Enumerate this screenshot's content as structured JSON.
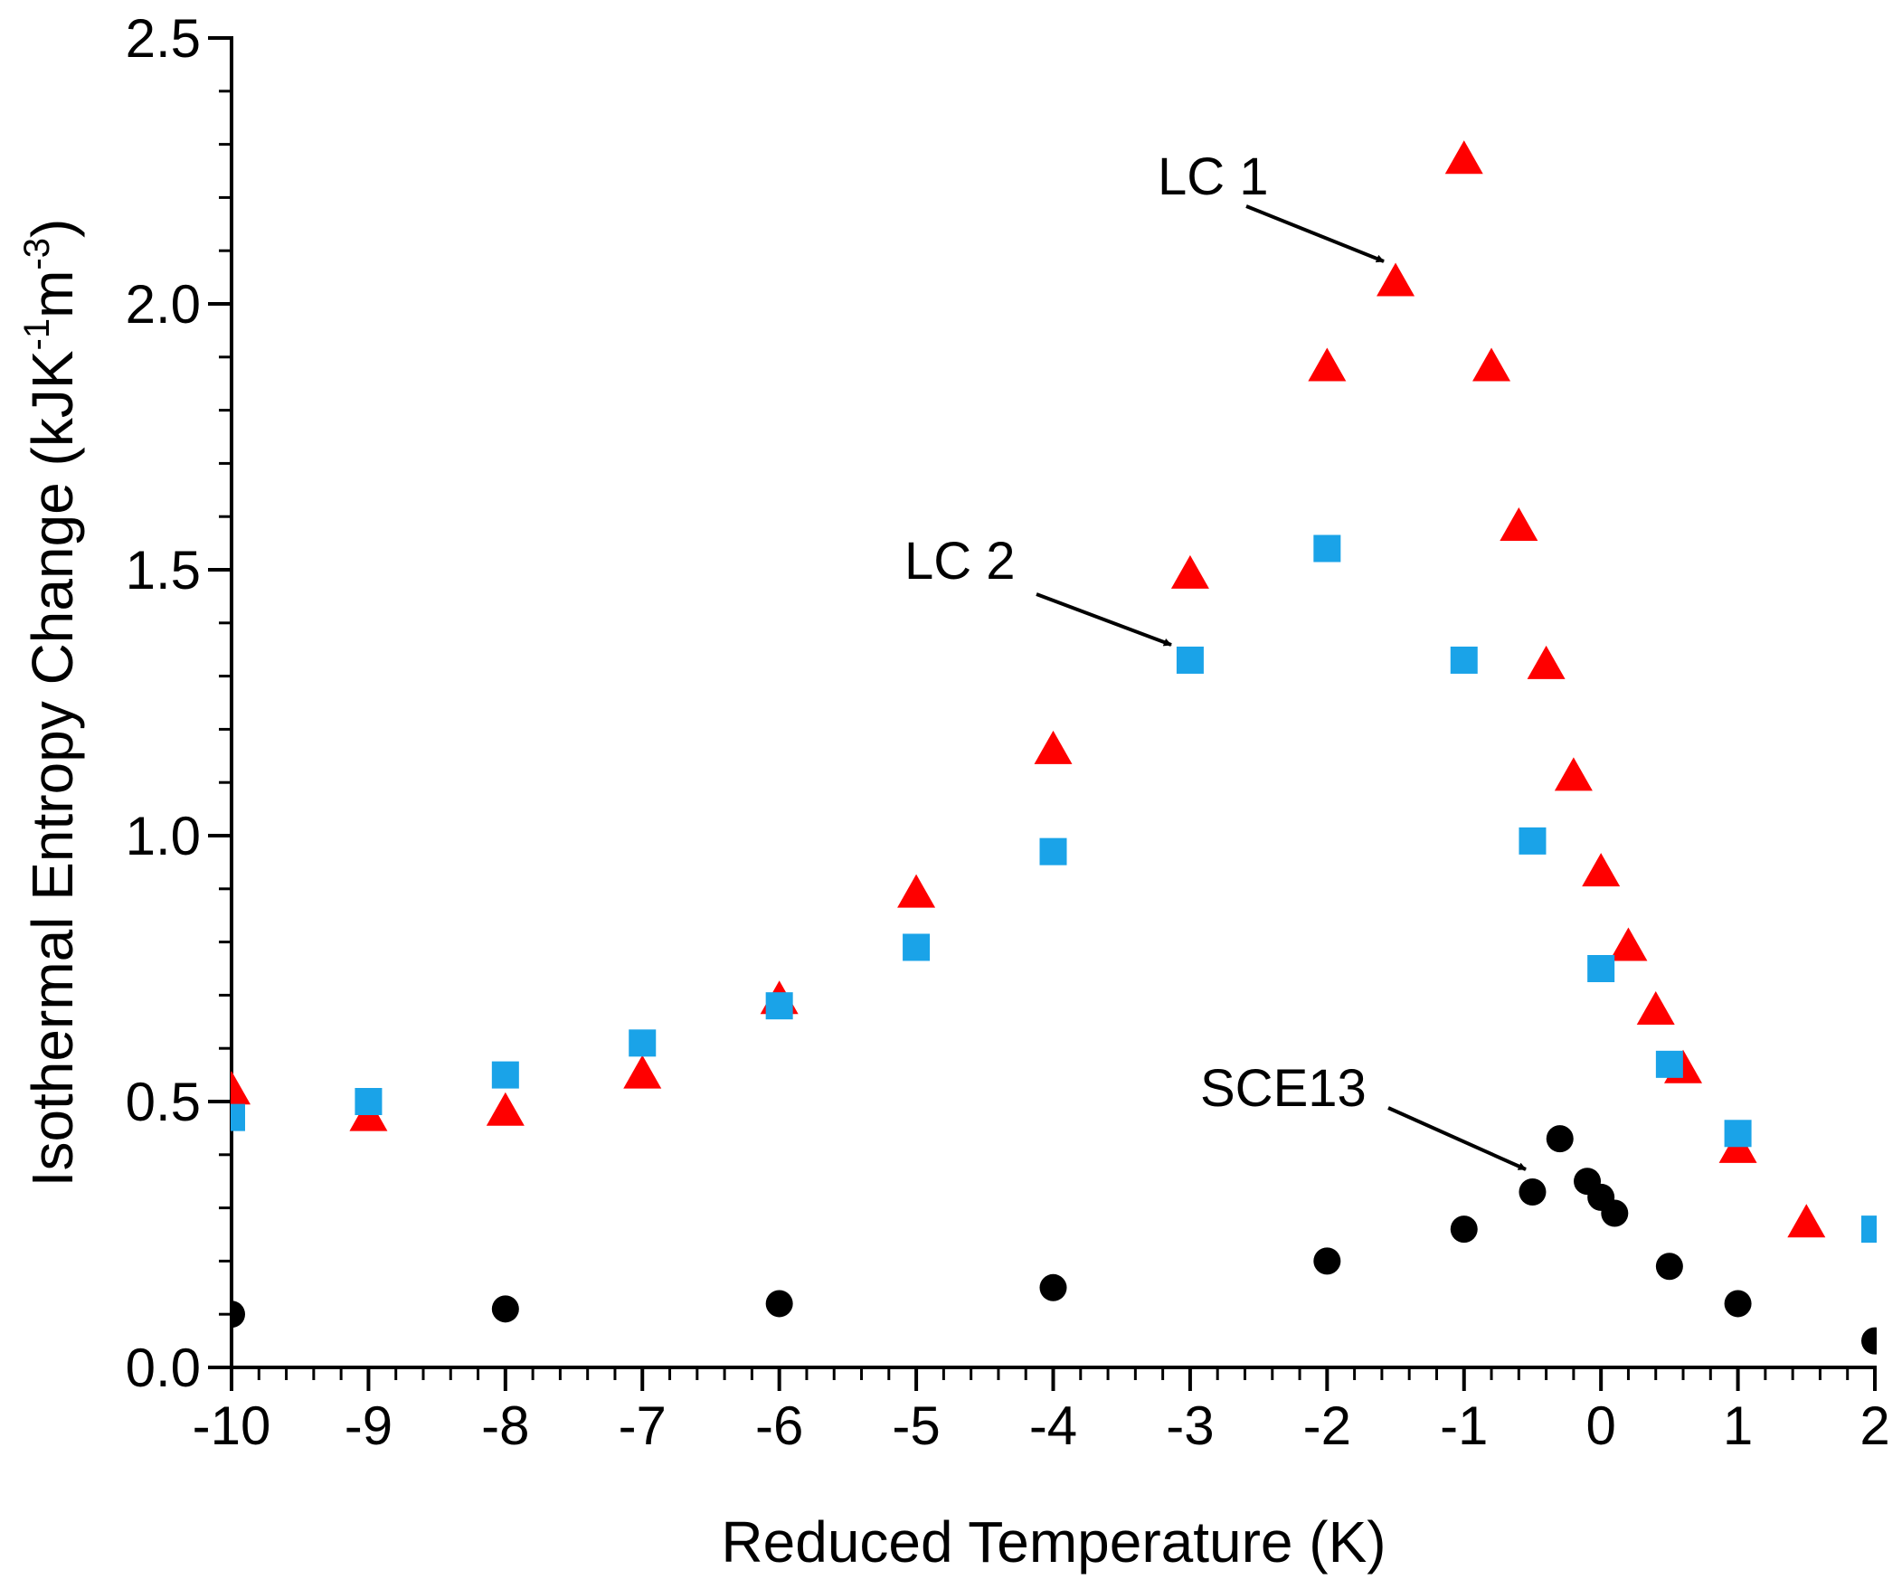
{
  "chart_data": {
    "type": "scatter",
    "title": "",
    "xlabel": "Reduced Temperature (K)",
    "ylabel_main": "Isothermal Entropy Change (kJK",
    "ylabel_sup1": "-1",
    "ylabel_mid": "m",
    "ylabel_sup2": "-3",
    "ylabel_end": ")",
    "xlim": [
      -10,
      2
    ],
    "ylim": [
      0,
      2.5
    ],
    "x_ticks": [
      -10,
      -9,
      -8,
      -7,
      -6,
      -5,
      -4,
      -3,
      -2,
      -1,
      0,
      1,
      2
    ],
    "x_tick_labels": [
      "-10",
      "-9",
      "-8",
      "-7",
      "-6",
      "-5",
      "-4",
      "-3",
      "-2",
      "-1",
      "0",
      "1",
      "2"
    ],
    "y_ticks": [
      0,
      0.5,
      1.0,
      1.5,
      2.0,
      2.5
    ],
    "y_tick_labels": [
      "0.0",
      "0.5",
      "1.0",
      "1.5",
      "2.0",
      "2.5"
    ],
    "x_minor_step": 0.2,
    "y_minor_step": 0.1,
    "series": [
      {
        "name": "LC 1",
        "marker": "triangle",
        "color": "#ff0000",
        "x": [
          -10,
          -9,
          -8,
          -7,
          -6,
          -5,
          -4,
          -3,
          -2,
          -1.5,
          -1,
          -0.8,
          -0.6,
          -0.4,
          -0.2,
          0,
          0.2,
          0.4,
          0.6,
          1,
          1.5
        ],
        "y": [
          0.52,
          0.47,
          0.48,
          0.55,
          0.69,
          0.89,
          1.16,
          1.49,
          1.88,
          2.04,
          2.27,
          1.88,
          1.58,
          1.32,
          1.11,
          0.93,
          0.79,
          0.67,
          0.56,
          0.41,
          0.27
        ]
      },
      {
        "name": "LC 2",
        "marker": "square",
        "color": "#1aa3e8",
        "x": [
          -10,
          -9,
          -8,
          -7,
          -6,
          -5,
          -4,
          -3,
          -2,
          -1,
          -0.5,
          0,
          0.5,
          1,
          2
        ],
        "y": [
          0.47,
          0.5,
          0.55,
          0.61,
          0.68,
          0.79,
          0.97,
          1.33,
          1.54,
          1.33,
          0.99,
          0.75,
          0.57,
          0.44,
          0.26
        ]
      },
      {
        "name": "SCE13",
        "marker": "circle",
        "color": "#000000",
        "x": [
          -10,
          -8,
          -6,
          -4,
          -2,
          -1,
          -0.5,
          -0.3,
          -0.1,
          0,
          0.1,
          0.5,
          1,
          2
        ],
        "y": [
          0.1,
          0.11,
          0.12,
          0.15,
          0.2,
          0.26,
          0.33,
          0.43,
          0.35,
          0.32,
          0.29,
          0.19,
          0.12,
          0.05
        ]
      }
    ],
    "annotations": [
      {
        "text": "LC 1",
        "target": [
          -1.5,
          2.04
        ]
      },
      {
        "text": "LC 2",
        "target": [
          -3,
          1.33
        ]
      },
      {
        "text": "SCE13",
        "target": [
          -0.5,
          0.33
        ]
      }
    ]
  }
}
